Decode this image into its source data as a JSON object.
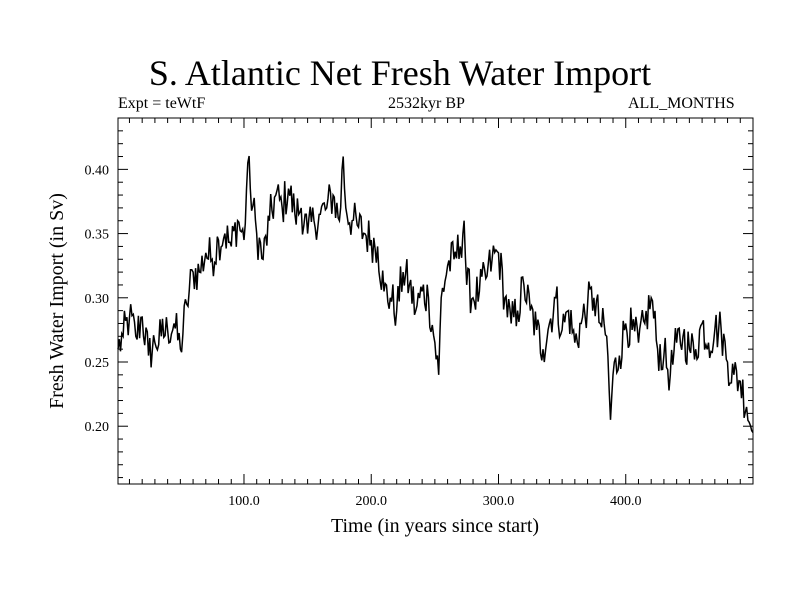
{
  "chart_data": {
    "type": "line",
    "title": "S. Atlantic Net Fresh Water Import",
    "subtitle_left": "Expt = teWtF",
    "subtitle_center": "2532kyr BP",
    "subtitle_right": "ALL_MONTHS",
    "xlabel": "Time (in years since start)",
    "ylabel": "Fresh Water Import (in Sv)",
    "xlim": [
      1,
      500
    ],
    "ylim": [
      0.155,
      0.44
    ],
    "xticks": [
      100,
      200,
      300,
      400
    ],
    "xtick_labels": [
      "100.0",
      "200.0",
      "300.0",
      "400.0"
    ],
    "yticks": [
      0.2,
      0.25,
      0.3,
      0.35,
      0.4
    ],
    "ytick_labels": [
      "0.20",
      "0.25",
      "0.30",
      "0.35",
      "0.40"
    ],
    "series": [
      {
        "name": "Fresh Water Import",
        "x": [
          1,
          5,
          10,
          15,
          20,
          25,
          30,
          35,
          40,
          45,
          50,
          55,
          60,
          65,
          70,
          75,
          80,
          85,
          90,
          95,
          100,
          103,
          105,
          110,
          115,
          120,
          125,
          130,
          135,
          140,
          145,
          150,
          155,
          160,
          165,
          170,
          175,
          178,
          180,
          185,
          190,
          195,
          200,
          205,
          210,
          215,
          220,
          225,
          230,
          235,
          240,
          245,
          250,
          253,
          255,
          260,
          265,
          270,
          273,
          275,
          280,
          285,
          290,
          295,
          300,
          305,
          310,
          315,
          320,
          325,
          330,
          335,
          340,
          345,
          350,
          355,
          360,
          365,
          370,
          375,
          380,
          385,
          388,
          390,
          395,
          400,
          405,
          410,
          415,
          420,
          425,
          430,
          435,
          440,
          445,
          450,
          455,
          460,
          465,
          470,
          475,
          480,
          485,
          490,
          495,
          500
        ],
        "values": [
          0.26,
          0.27,
          0.285,
          0.27,
          0.285,
          0.255,
          0.265,
          0.27,
          0.275,
          0.28,
          0.26,
          0.295,
          0.32,
          0.32,
          0.335,
          0.33,
          0.345,
          0.35,
          0.34,
          0.36,
          0.345,
          0.405,
          0.385,
          0.35,
          0.33,
          0.36,
          0.38,
          0.37,
          0.385,
          0.365,
          0.37,
          0.35,
          0.36,
          0.365,
          0.37,
          0.38,
          0.36,
          0.41,
          0.37,
          0.36,
          0.355,
          0.35,
          0.345,
          0.34,
          0.305,
          0.3,
          0.29,
          0.32,
          0.31,
          0.29,
          0.305,
          0.3,
          0.265,
          0.24,
          0.3,
          0.325,
          0.33,
          0.34,
          0.36,
          0.31,
          0.3,
          0.305,
          0.315,
          0.33,
          0.335,
          0.3,
          0.28,
          0.29,
          0.31,
          0.29,
          0.275,
          0.26,
          0.28,
          0.3,
          0.275,
          0.29,
          0.265,
          0.28,
          0.295,
          0.3,
          0.28,
          0.27,
          0.205,
          0.24,
          0.255,
          0.28,
          0.275,
          0.265,
          0.28,
          0.3,
          0.26,
          0.255,
          0.24,
          0.265,
          0.27,
          0.26,
          0.26,
          0.28,
          0.265,
          0.275,
          0.275,
          0.25,
          0.24,
          0.235,
          0.215,
          0.195
        ]
      }
    ]
  }
}
